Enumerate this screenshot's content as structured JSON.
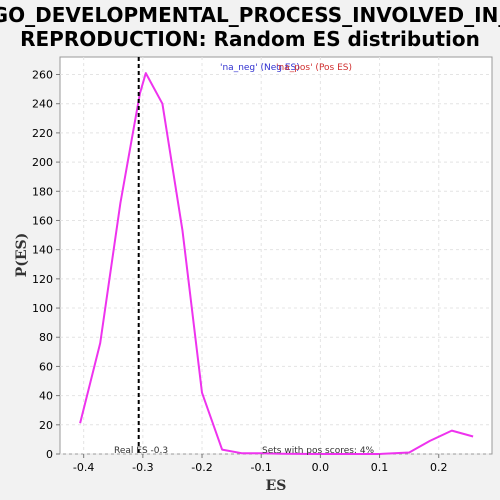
{
  "chart_data": {
    "type": "line",
    "title_lines": [
      "GO_DEVELOPMENTAL_PROCESS_INVOLVED_IN_",
      "REPRODUCTION: Random ES distribution"
    ],
    "xlabel": "ES",
    "ylabel": "P(ES)",
    "xlim": [
      -0.44,
      0.29
    ],
    "ylim": [
      0,
      272
    ],
    "x_ticks": [
      -0.4,
      -0.3,
      -0.2,
      -0.1,
      0.0,
      0.1,
      0.2
    ],
    "x_tick_labels": [
      "-0.4",
      "-0.3",
      "-0.2",
      "-0.1",
      "0.0",
      "0.1",
      "0.2"
    ],
    "y_ticks": [
      0,
      20,
      40,
      60,
      80,
      100,
      120,
      140,
      160,
      180,
      200,
      220,
      240,
      260
    ],
    "y_tick_labels": [
      "0",
      "20",
      "40",
      "60",
      "80",
      "100",
      "120",
      "140",
      "160",
      "180",
      "200",
      "220",
      "240",
      "260"
    ],
    "grid": true,
    "series": [
      {
        "color": "#ee33ee",
        "x": [
          -0.406,
          -0.372,
          -0.338,
          -0.305,
          -0.295,
          -0.267,
          -0.233,
          -0.2,
          -0.166,
          -0.132,
          -0.1,
          -0.066,
          0.0,
          0.05,
          0.1,
          0.15,
          0.185,
          0.222,
          0.258
        ],
        "y": [
          21,
          76,
          172,
          247,
          261,
          240,
          153,
          42,
          3,
          0.5,
          0.5,
          0.2,
          0,
          0,
          0,
          1,
          9,
          16,
          12
        ]
      }
    ],
    "real_es": {
      "x": -0.307,
      "label": "Real ES -0.3"
    },
    "legend": {
      "neg": "'na_neg' (Neg ES)",
      "pos": "'na_pos' (Pos ES)",
      "placement": "top-center"
    },
    "annotation": "Sets with pos scores: 4%"
  },
  "colors": {
    "background": "#f2f2f2",
    "plot_bg": "#ffffff",
    "line": "#ee33ee",
    "real_es_line": "#000000",
    "grid": "#e4e4e4"
  }
}
